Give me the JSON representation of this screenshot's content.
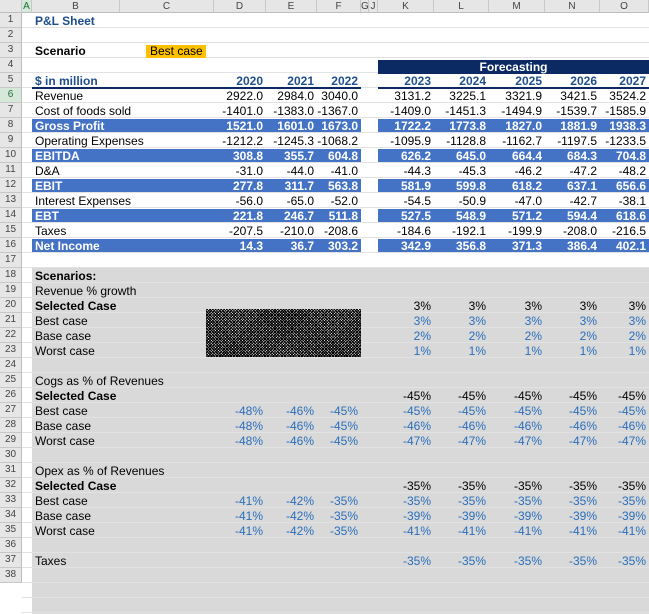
{
  "columns": [
    "A",
    "B",
    "C",
    "D",
    "E",
    "F",
    "G",
    "J",
    "K",
    "L",
    "M",
    "N",
    "O"
  ],
  "rows": [
    "1",
    "2",
    "3",
    "4",
    "5",
    "6",
    "7",
    "8",
    "9",
    "10",
    "11",
    "12",
    "13",
    "14",
    "15",
    "16",
    "17",
    "18",
    "19",
    "20",
    "21",
    "22",
    "23",
    "24",
    "25",
    "26",
    "27",
    "28",
    "29",
    "30",
    "31",
    "32",
    "33",
    "34",
    "35",
    "36",
    "37",
    "38"
  ],
  "title": "P&L Sheet",
  "scenario_label": "Scenario",
  "scenario_value": "Best case",
  "forecasting_label": "Forecasting",
  "units_label": "$ in million",
  "years": [
    "2020",
    "2021",
    "2022",
    "2023",
    "2024",
    "2025",
    "2026",
    "2027"
  ],
  "pl": [
    {
      "label": "Revenue",
      "values": [
        "2922.0",
        "2984.0",
        "3040.0",
        "3131.2",
        "3225.1",
        "3321.9",
        "3421.5",
        "3524.2"
      ]
    },
    {
      "label": "Cost of foods sold",
      "values": [
        "-1401.0",
        "-1383.0",
        "-1367.0",
        "-1409.0",
        "-1451.3",
        "-1494.9",
        "-1539.7",
        "-1585.9"
      ]
    },
    {
      "label": "Gross Profit",
      "values": [
        "1521.0",
        "1601.0",
        "1673.0",
        "1722.2",
        "1773.8",
        "1827.0",
        "1881.9",
        "1938.3"
      ]
    },
    {
      "label": "Operating Expenses",
      "values": [
        "-1212.2",
        "-1245.3",
        "-1068.2",
        "-1095.9",
        "-1128.8",
        "-1162.7",
        "-1197.5",
        "-1233.5"
      ]
    },
    {
      "label": "EBITDA",
      "values": [
        "308.8",
        "355.7",
        "604.8",
        "626.2",
        "645.0",
        "664.4",
        "684.3",
        "704.8"
      ]
    },
    {
      "label": "D&A",
      "values": [
        "-31.0",
        "-44.0",
        "-41.0",
        "-44.3",
        "-45.3",
        "-46.2",
        "-47.2",
        "-48.2"
      ]
    },
    {
      "label": "EBIT",
      "values": [
        "277.8",
        "311.7",
        "563.8",
        "581.9",
        "599.8",
        "618.2",
        "637.1",
        "656.6"
      ]
    },
    {
      "label": "Interest Expenses",
      "values": [
        "-56.0",
        "-65.0",
        "-52.0",
        "-54.5",
        "-50.9",
        "-47.0",
        "-42.7",
        "-38.1"
      ]
    },
    {
      "label": "EBT",
      "values": [
        "221.8",
        "246.7",
        "511.8",
        "527.5",
        "548.9",
        "571.2",
        "594.4",
        "618.6"
      ]
    },
    {
      "label": "Taxes",
      "values": [
        "-207.5",
        "-210.0",
        "-208.6",
        "-184.6",
        "-192.1",
        "-199.9",
        "-208.0",
        "-216.5"
      ]
    },
    {
      "label": "Net Income",
      "values": [
        "14.3",
        "36.7",
        "303.2",
        "342.9",
        "356.8",
        "371.3",
        "386.4",
        "402.1"
      ]
    }
  ],
  "scenarios_title": "Scenarios:",
  "revenue_block": {
    "title": "Revenue % growth",
    "selected_label": "Selected Case",
    "selected": [
      "3%",
      "3%",
      "3%",
      "3%",
      "3%"
    ],
    "rows": [
      {
        "label": "Best case",
        "values": [
          "3%",
          "3%",
          "3%",
          "3%",
          "3%"
        ]
      },
      {
        "label": "Base case",
        "values": [
          "2%",
          "2%",
          "2%",
          "2%",
          "2%"
        ]
      },
      {
        "label": "Worst case",
        "values": [
          "1%",
          "1%",
          "1%",
          "1%",
          "1%"
        ]
      }
    ]
  },
  "cogs_block": {
    "title": "Cogs as % of Revenues",
    "selected_label": "Selected Case",
    "selected": [
      "-45%",
      "-45%",
      "-45%",
      "-45%",
      "-45%"
    ],
    "rows": [
      {
        "label": "Best case",
        "hist": [
          "-48%",
          "-46%",
          "-45%"
        ],
        "values": [
          "-45%",
          "-45%",
          "-45%",
          "-45%",
          "-45%"
        ]
      },
      {
        "label": "Base case",
        "hist": [
          "-48%",
          "-46%",
          "-45%"
        ],
        "values": [
          "-46%",
          "-46%",
          "-46%",
          "-46%",
          "-46%"
        ]
      },
      {
        "label": "Worst case",
        "hist": [
          "-48%",
          "-46%",
          "-45%"
        ],
        "values": [
          "-47%",
          "-47%",
          "-47%",
          "-47%",
          "-47%"
        ]
      }
    ]
  },
  "opex_block": {
    "title": "Opex as % of Revenues",
    "selected_label": "Selected Case",
    "selected": [
      "-35%",
      "-35%",
      "-35%",
      "-35%",
      "-35%"
    ],
    "rows": [
      {
        "label": "Best case",
        "hist": [
          "-41%",
          "-42%",
          "-35%"
        ],
        "values": [
          "-35%",
          "-35%",
          "-35%",
          "-35%",
          "-35%"
        ]
      },
      {
        "label": "Base case",
        "hist": [
          "-41%",
          "-42%",
          "-35%"
        ],
        "values": [
          "-39%",
          "-39%",
          "-39%",
          "-39%",
          "-39%"
        ]
      },
      {
        "label": "Worst case",
        "hist": [
          "-41%",
          "-42%",
          "-35%"
        ],
        "values": [
          "-41%",
          "-41%",
          "-41%",
          "-41%",
          "-41%"
        ]
      }
    ]
  },
  "taxes_row": {
    "label": "Taxes",
    "values": [
      "-35%",
      "-35%",
      "-35%",
      "-35%",
      "-35%"
    ]
  },
  "colors": {
    "band": "#4472c4",
    "dark_header": "#0b2a64",
    "scenario_bg": "#d9d9d9",
    "highlight": "#ffc000",
    "input_blue": "#2a6ebb"
  }
}
